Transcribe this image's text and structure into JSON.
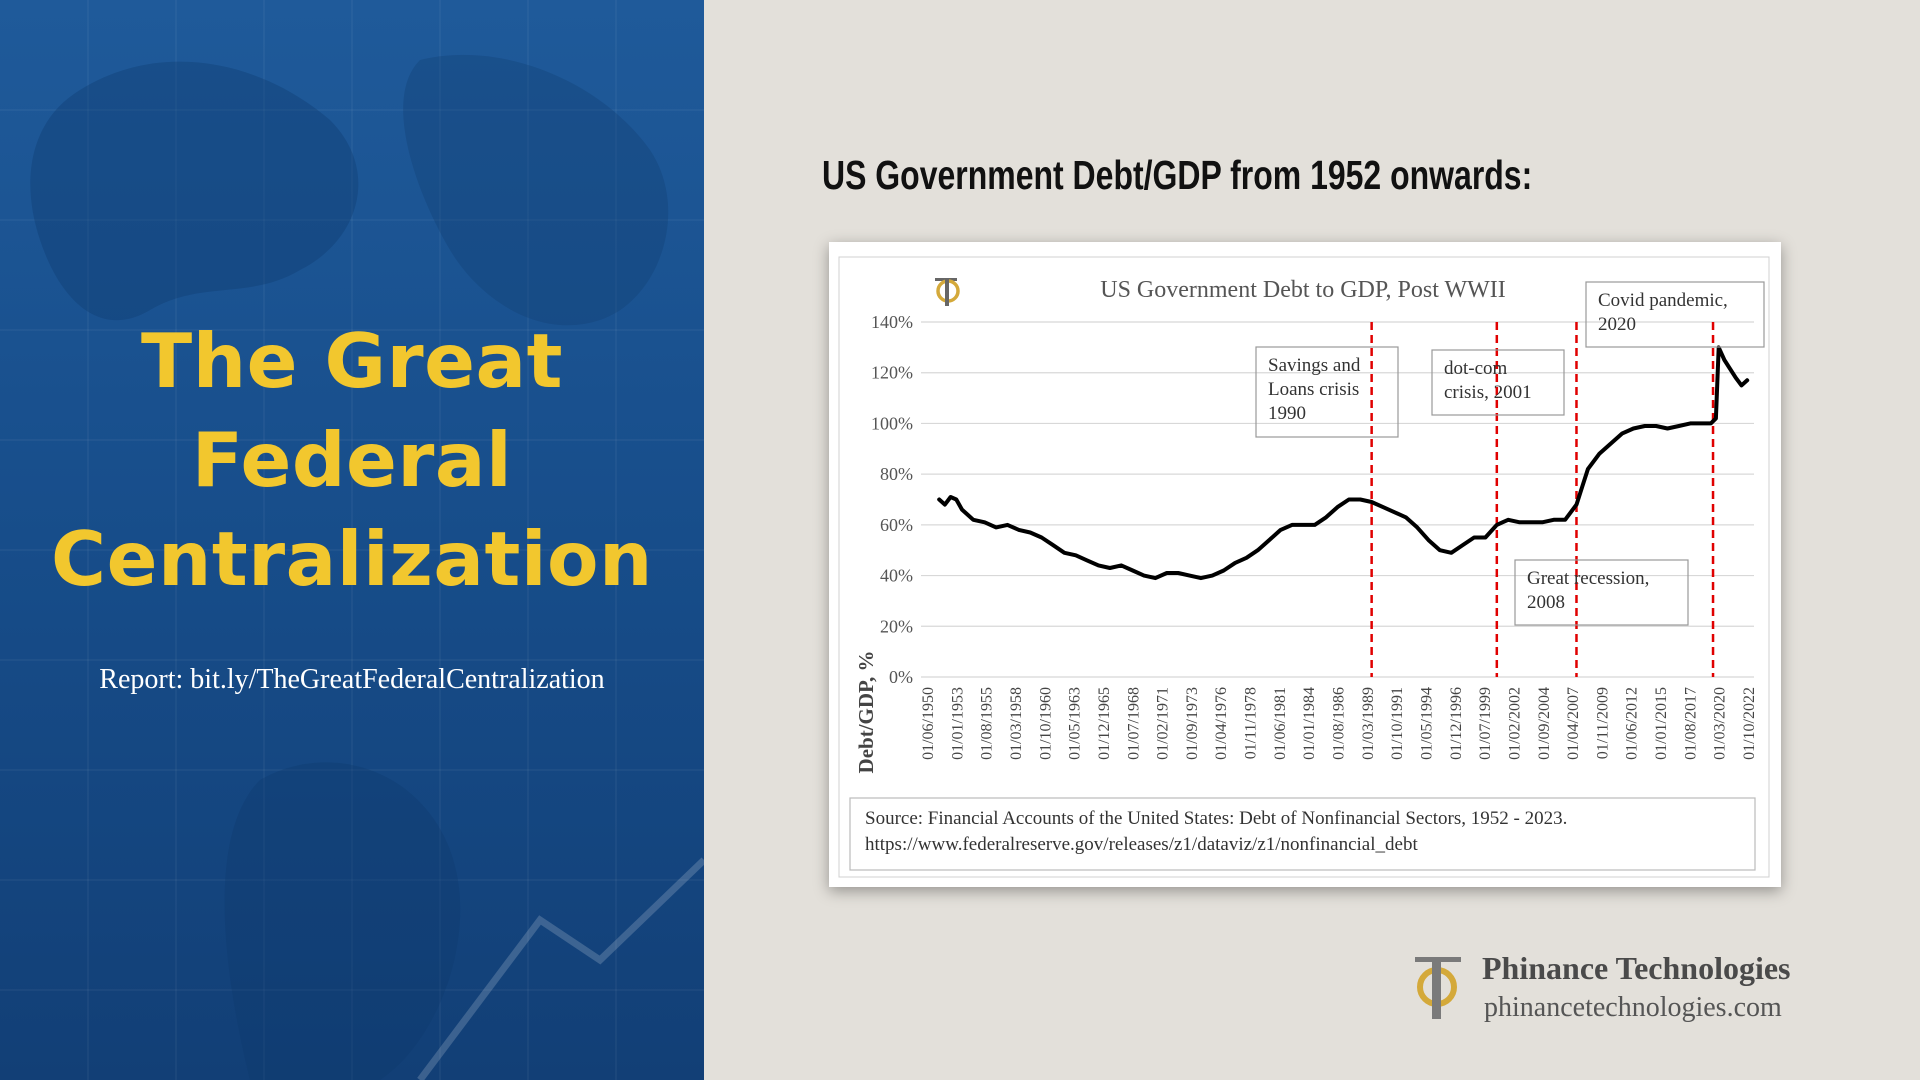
{
  "slide": {
    "title_lines": [
      "The Great",
      "Federal",
      "Centralization"
    ],
    "report": "Report: bit.ly/TheGreatFederalCentralization",
    "heading": "US Government Debt/GDP from 1952 onwards:",
    "colors": {
      "left_bg": "#1a528f",
      "accent": "#f2c72e",
      "right_bg": "#e3e0da"
    }
  },
  "brand": {
    "name": "Phinance Technologies",
    "url": "phinancetechnologies.com",
    "logo_icon": "phinance-logo-icon"
  },
  "chart_data": {
    "type": "line",
    "title": "US Government Debt to GDP, Post WWII",
    "ylabel": "Debt/GDP, %",
    "xlabel": "",
    "ylim": [
      0,
      140
    ],
    "y_ticks": [
      0,
      20,
      40,
      60,
      80,
      100,
      120,
      140
    ],
    "y_tick_labels": [
      "0%",
      "20%",
      "40%",
      "60%",
      "80%",
      "100%",
      "120%",
      "140%"
    ],
    "x_tick_labels": [
      "01/06/1950",
      "01/01/1953",
      "01/08/1955",
      "01/03/1958",
      "01/10/1960",
      "01/05/1963",
      "01/12/1965",
      "01/07/1968",
      "01/02/1971",
      "01/09/1973",
      "01/04/1976",
      "01/11/1978",
      "01/06/1981",
      "01/01/1984",
      "01/08/1986",
      "01/03/1989",
      "01/10/1991",
      "01/05/1994",
      "01/12/1996",
      "01/07/1999",
      "01/02/2002",
      "01/09/2004",
      "01/04/2007",
      "01/11/2009",
      "01/06/2012",
      "01/01/2015",
      "01/08/2017",
      "01/03/2020",
      "01/10/2022"
    ],
    "x_range": [
      1950.4,
      2023.6
    ],
    "grid": true,
    "series": [
      {
        "x": [
          1952.0,
          1952.5,
          1953.0,
          1953.5,
          1954.0,
          1954.5,
          1955.0,
          1956.0,
          1957.0,
          1958.0,
          1959.0,
          1960.0,
          1961.0,
          1962.0,
          1963.0,
          1964.0,
          1965.0,
          1966.0,
          1967.0,
          1968.0,
          1969.0,
          1970.0,
          1971.0,
          1972.0,
          1973.0,
          1974.0,
          1975.0,
          1976.0,
          1977.0,
          1978.0,
          1979.0,
          1980.0,
          1981.0,
          1982.0,
          1983.0,
          1984.0,
          1985.0,
          1986.0,
          1987.0,
          1988.0,
          1989.0,
          1990.0,
          1991.0,
          1992.0,
          1993.0,
          1994.0,
          1995.0,
          1996.0,
          1997.0,
          1998.0,
          1999.0,
          2000.0,
          2001.0,
          2001.5,
          2002.0,
          2003.0,
          2004.0,
          2005.0,
          2006.0,
          2007.0,
          2008.0,
          2008.5,
          2009.0,
          2010.0,
          2011.0,
          2012.0,
          2013.0,
          2014.0,
          2015.0,
          2016.0,
          2017.0,
          2018.0,
          2019.0,
          2019.8,
          2020.25,
          2020.5,
          2021.0,
          2022.0,
          2022.5,
          2023.0
        ],
        "y": [
          70,
          68,
          71,
          70,
          66,
          64,
          62,
          61,
          59,
          60,
          58,
          57,
          55,
          52,
          49,
          48,
          46,
          44,
          43,
          44,
          42,
          40,
          39,
          41,
          41,
          40,
          39,
          40,
          42,
          45,
          47,
          50,
          54,
          58,
          60,
          60,
          60,
          63,
          67,
          70,
          70,
          69,
          67,
          65,
          63,
          59,
          54,
          50,
          49,
          52,
          55,
          55,
          60,
          61,
          62,
          61,
          61,
          61,
          62,
          62,
          68,
          75,
          82,
          88,
          92,
          96,
          98,
          99,
          99,
          98,
          99,
          100,
          100,
          100,
          102,
          130,
          125,
          118,
          115,
          117
        ]
      }
    ],
    "annotations": [
      {
        "lines": [
          "Savings and",
          "Loans crisis",
          "1990"
        ],
        "x": 1990.0
      },
      {
        "lines": [
          "dot-com",
          "crisis, 2001"
        ],
        "x": 2001.0
      },
      {
        "lines": [
          "Great recession,",
          "2008"
        ],
        "x": 2008.0
      },
      {
        "lines": [
          "Covid pandemic,",
          "2020"
        ],
        "x": 2020.0
      }
    ],
    "source_lines": [
      "Source: Financial Accounts of the United States: Debt of Nonfinancial Sectors, 1952 - 2023.",
      "https://www.federalreserve.gov/releases/z1/dataviz/z1/nonfinancial_debt"
    ],
    "colors": {
      "line": "#000000",
      "markers": "#e00000",
      "grid": "#d8d8d8"
    }
  }
}
